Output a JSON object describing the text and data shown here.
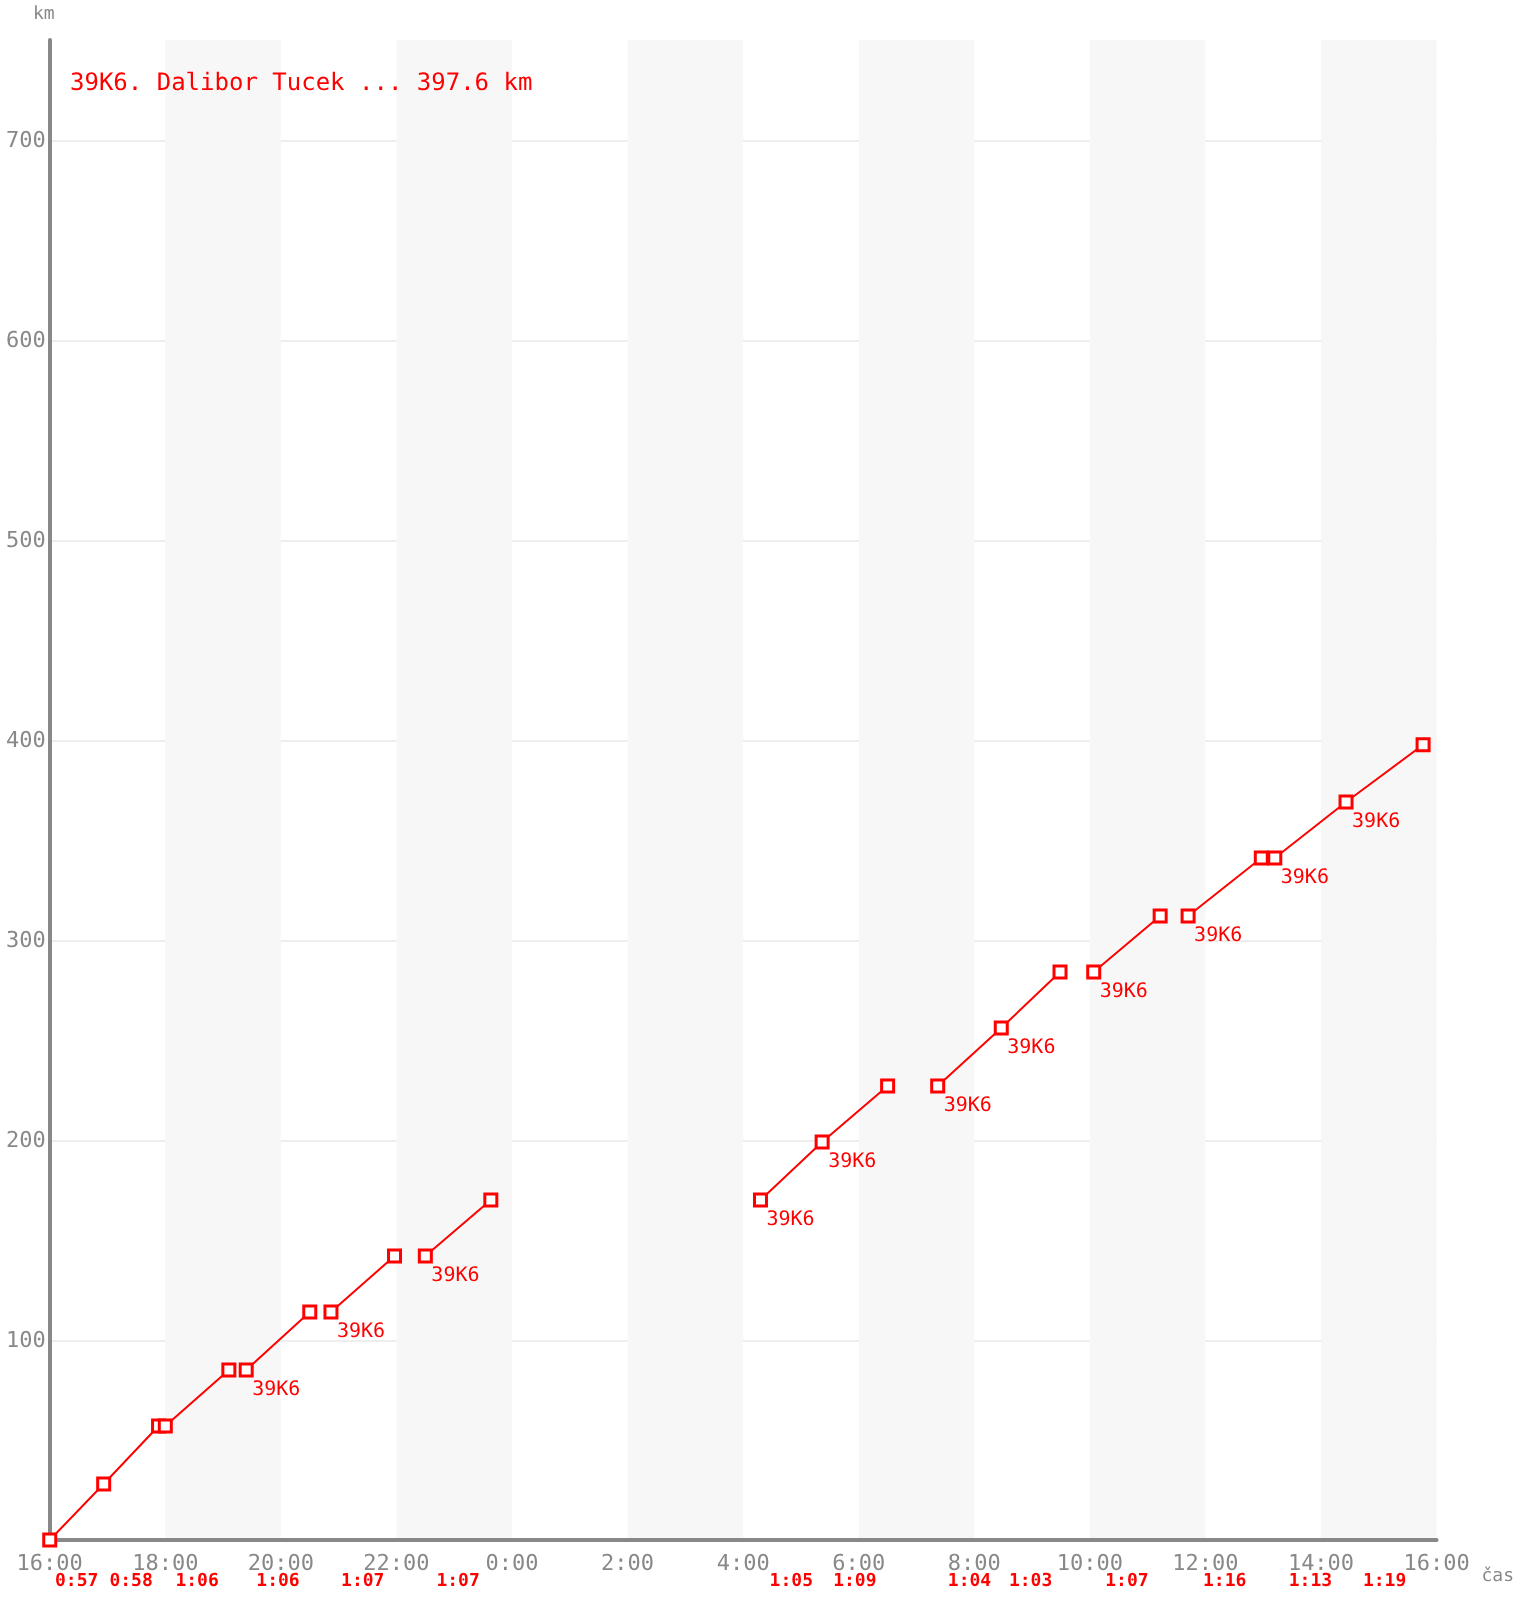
{
  "chart_data": {
    "type": "line",
    "title": "39K6. Dalibor Tucek ... 397.6 km",
    "xlabel": "čas",
    "ylabel": "km",
    "x": [
      "2000-01-01T16:00",
      "2000-01-01T16:56",
      "2000-01-01T17:53",
      "2000-01-01T18:00",
      "2000-01-01T19:06",
      "2000-01-01T19:15",
      "2000-01-01T19:24",
      "2000-01-01T20:30",
      "2000-01-01T20:42",
      "2000-01-01T20:52",
      "2000-01-01T21:58",
      "2000-01-01T22:12",
      "2000-01-01T22:30",
      "2000-01-01T23:38",
      "2000-01-02T02:00",
      "2000-01-02T04:18",
      "2000-01-02T05:22",
      "2000-01-02T06:30",
      "2000-01-02T06:54",
      "2000-01-02T07:22",
      "2000-01-02T08:28",
      "2000-01-02T09:29",
      "2000-01-02T09:48",
      "2000-01-02T10:04",
      "2000-01-02T11:13",
      "2000-01-02T11:27",
      "2000-01-02T11:42",
      "2000-01-02T12:58",
      "2000-01-02T13:06",
      "2000-01-02T13:12",
      "2000-01-02T14:26",
      "2000-01-02T15:46"
    ],
    "series": [
      {
        "color": "#ff0000",
        "values": [
          0,
          28,
          57,
          57,
          85,
          null,
          85,
          114,
          null,
          114,
          142,
          null,
          142,
          170,
          null,
          170,
          199,
          227,
          null,
          227,
          256,
          284,
          null,
          284,
          312,
          null,
          312,
          341,
          null,
          341,
          369,
          397.6
        ]
      }
    ],
    "xlim": [
      "2000-01-01T16:00",
      "2000-01-02T16:00"
    ],
    "xticks": [
      {
        "value": "2000-01-01T16:00",
        "label": "16:00"
      },
      {
        "value": "2000-01-01T18:00",
        "label": "18:00"
      },
      {
        "value": "2000-01-01T20:00",
        "label": "20:00"
      },
      {
        "value": "2000-01-01T22:00",
        "label": "22:00"
      },
      {
        "value": "2000-01-02T00:00",
        "label": "0:00"
      },
      {
        "value": "2000-01-02T02:00",
        "label": "2:00"
      },
      {
        "value": "2000-01-02T04:00",
        "label": "4:00"
      },
      {
        "value": "2000-01-02T06:00",
        "label": "6:00"
      },
      {
        "value": "2000-01-02T08:00",
        "label": "8:00"
      },
      {
        "value": "2000-01-02T10:00",
        "label": "10:00"
      },
      {
        "value": "2000-01-02T12:00",
        "label": "12:00"
      },
      {
        "value": "2000-01-02T14:00",
        "label": "14:00"
      },
      {
        "value": "2000-01-02T16:00",
        "label": "16:00"
      }
    ],
    "ylim": [
      0,
      750
    ],
    "yticks": [
      100,
      200,
      300,
      400,
      500,
      600,
      700
    ],
    "grid": "y",
    "marker": "square",
    "line_style": "solid",
    "bands": [
      {
        "axis": "x",
        "from": "2000-01-01T18:00",
        "to": "2000-01-01T20:00",
        "color": "#f7f7f7"
      },
      {
        "axis": "x",
        "from": "2000-01-01T22:00",
        "to": "2000-01-02T00:00",
        "color": "#f7f7f7"
      },
      {
        "axis": "x",
        "from": "2000-01-02T02:00",
        "to": "2000-01-02T04:00",
        "color": "#f7f7f7"
      },
      {
        "axis": "x",
        "from": "2000-01-02T06:00",
        "to": "2000-01-02T08:00",
        "color": "#f7f7f7"
      },
      {
        "axis": "x",
        "from": "2000-01-02T10:00",
        "to": "2000-01-02T12:00",
        "color": "#f7f7f7"
      },
      {
        "axis": "x",
        "from": "2000-01-02T14:00",
        "to": "2000-01-02T16:00",
        "color": "#f7f7f7"
      }
    ],
    "annotations": [
      {
        "text": "39K6",
        "x": "2000-01-01T19:24",
        "y": 85
      },
      {
        "text": "39K6",
        "x": "2000-01-01T20:52",
        "y": 114
      },
      {
        "text": "39K6",
        "x": "2000-01-01T22:30",
        "y": 142
      },
      {
        "text": "39K6",
        "x": "2000-01-02T04:18",
        "y": 170
      },
      {
        "text": "39K6",
        "x": "2000-01-02T05:22",
        "y": 199
      },
      {
        "text": "39K6",
        "x": "2000-01-02T07:22",
        "y": 227
      },
      {
        "text": "39K6",
        "x": "2000-01-02T08:28",
        "y": 256
      },
      {
        "text": "39K6",
        "x": "2000-01-02T10:04",
        "y": 284
      },
      {
        "text": "39K6",
        "x": "2000-01-02T11:42",
        "y": 312
      },
      {
        "text": "39K6",
        "x": "2000-01-02T13:12",
        "y": 341
      },
      {
        "text": "39K6",
        "x": "2000-01-02T14:26",
        "y": 369
      },
      "0:57",
      "0:58",
      "1:06",
      "1:06",
      "1:07",
      "1:07",
      "1:05",
      "1:09",
      "1:04",
      "1:03",
      "1:07",
      "1:16",
      "1:13",
      "1:19"
    ]
  }
}
